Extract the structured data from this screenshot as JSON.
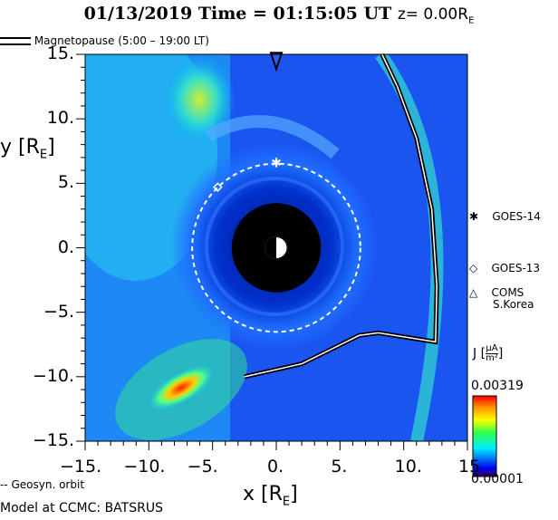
{
  "title": {
    "date_time": "01/13/2019 Time = 01:15:05 UT",
    "z": "z= 0.00R",
    "z_sub": "E"
  },
  "legend": {
    "magnetopause": "Magnetopause (5:00 – 19:00 LT)",
    "geosyn": "-- Geosyn. orbit",
    "model": "Model at CCMC: BATSRUS",
    "satellites": [
      {
        "symbol": "✱",
        "label": "GOES-14"
      },
      {
        "symbol": "◇",
        "label": "GOES-13"
      },
      {
        "symbol": "△",
        "label": "COMS",
        "label2": "S.Korea"
      }
    ]
  },
  "colorbar": {
    "label": "J",
    "unit_num": "μA",
    "unit_den": "m²",
    "max": "0.00319",
    "min": "0.00001"
  },
  "chart_data": {
    "type": "heatmap",
    "title": "01/13/2019 Time = 01:15:05 UT z= 0.00 R_E",
    "xlabel": "x [R",
    "xlabel_sub": "E",
    "ylabel": "y [R",
    "ylabel_sub": "E",
    "xlim": [
      -15,
      15
    ],
    "ylim": [
      -15,
      15
    ],
    "xticks": [
      -15,
      -10,
      -5,
      0,
      5,
      10,
      15
    ],
    "xtick_labels": [
      "−15.",
      "−10.",
      "−5.",
      "0.",
      "5.",
      "10.",
      "15"
    ],
    "yticks": [
      15,
      10,
      5,
      0,
      -5,
      -10,
      -15
    ],
    "ytick_labels": [
      "15.",
      "10.",
      "5.",
      "0.",
      "−5.",
      "−10.",
      "−15."
    ],
    "variable": "J current density",
    "units": "μA/m²",
    "vmin": 1e-05,
    "vmax": 0.00319,
    "earth_radius": 3.5,
    "geosync_radius": 6.6,
    "magnetopause": [
      [
        -2.5,
        -10
      ],
      [
        2,
        -9
      ],
      [
        6.5,
        -6.8
      ],
      [
        8,
        -6.6
      ],
      [
        12.5,
        -7.3
      ],
      [
        12.6,
        -3
      ],
      [
        12.2,
        3
      ],
      [
        11,
        8.5
      ],
      [
        9.5,
        12.5
      ],
      [
        8.3,
        15
      ]
    ],
    "satellites": [
      {
        "name": "GOES-14",
        "x": 0,
        "y": 6.6
      },
      {
        "name": "GOES-13",
        "x": -4.6,
        "y": 4.7
      },
      {
        "name": "COMS",
        "x": 0,
        "y": 14.7
      }
    ]
  }
}
